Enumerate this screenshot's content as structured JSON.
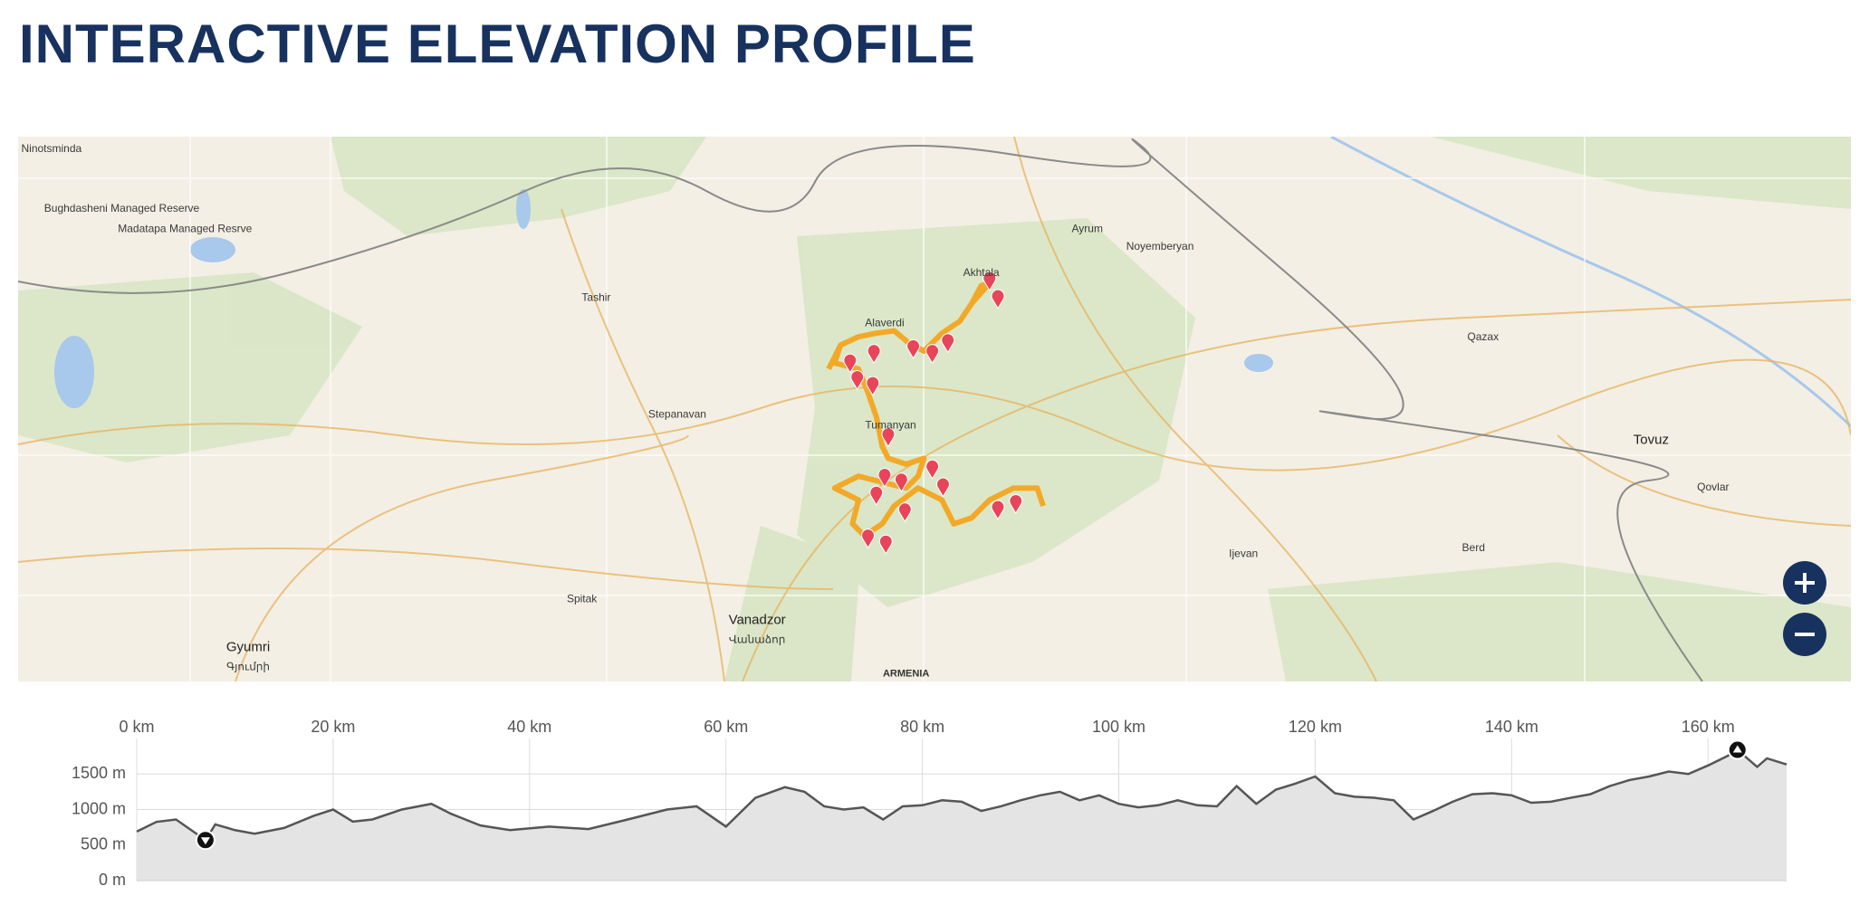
{
  "header": {
    "title": "INTERACTIVE ELEVATION PROFILE"
  },
  "map": {
    "labels": [
      "Gyumri",
      "Գյումրի",
      "Vanadzor",
      "Վանաձոր",
      "Tovuz",
      "Qazax",
      "Alaverdi",
      "Stepanavan",
      "Tashir",
      "Noyemberyan",
      "Ayrum",
      "Qovlar",
      "Ijevan",
      "Berd",
      "Spitak",
      "ARMENIA",
      "Akhtala",
      "Tumanyan",
      "Ninotsminda",
      "Bughdasheni Managed Reserve",
      "Madatapa Managed Resrve"
    ]
  },
  "chart_data": {
    "type": "area",
    "x": [
      0,
      2,
      4,
      7,
      8,
      10,
      12,
      15,
      18,
      20,
      22,
      24,
      27,
      30,
      32,
      35,
      38,
      42,
      46,
      50,
      54,
      57,
      60,
      63,
      66,
      68,
      70,
      72,
      74,
      76,
      78,
      80,
      82,
      84,
      86,
      88,
      90,
      92,
      94,
      96,
      98,
      100,
      102,
      104,
      106,
      108,
      110,
      112,
      114,
      116,
      118,
      120,
      122,
      124,
      126,
      128,
      130,
      132,
      134,
      136,
      138,
      140,
      142,
      144,
      146,
      148,
      150,
      152,
      154,
      156,
      158,
      160,
      162,
      163,
      165,
      166,
      168
    ],
    "values": [
      690,
      826,
      860,
      570,
      790,
      710,
      660,
      740,
      910,
      1000,
      830,
      860,
      1000,
      1080,
      940,
      775,
      710,
      760,
      725,
      860,
      1000,
      1045,
      760,
      1165,
      1315,
      1250,
      1045,
      1000,
      1030,
      860,
      1045,
      1060,
      1130,
      1110,
      980,
      1045,
      1130,
      1200,
      1250,
      1130,
      1200,
      1080,
      1030,
      1060,
      1130,
      1060,
      1045,
      1330,
      1080,
      1280,
      1365,
      1465,
      1230,
      1180,
      1165,
      1130,
      860,
      980,
      1110,
      1215,
      1230,
      1200,
      1095,
      1110,
      1165,
      1215,
      1330,
      1415,
      1465,
      1535,
      1500,
      1620,
      1755,
      1840,
      1600,
      1720,
      1635
    ],
    "color": "#555555",
    "fill": "#e4e4e4",
    "xlim": [
      0,
      168
    ],
    "ylim": [
      0,
      2000
    ],
    "xticks": [
      {
        "value": 0,
        "label": "0 km"
      },
      {
        "value": 20,
        "label": "20 km"
      },
      {
        "value": 40,
        "label": "40 km"
      },
      {
        "value": 60,
        "label": "60 km"
      },
      {
        "value": 80,
        "label": "80 km"
      },
      {
        "value": 100,
        "label": "100 km"
      },
      {
        "value": 120,
        "label": "120 km"
      },
      {
        "value": 140,
        "label": "140 km"
      },
      {
        "value": 160,
        "label": "160 km"
      }
    ],
    "yticks": [
      {
        "value": 0,
        "label": "0 m"
      },
      {
        "value": 500,
        "label": "500 m"
      },
      {
        "value": 1000,
        "label": "1000 m"
      },
      {
        "value": 1500,
        "label": "1500 m"
      }
    ],
    "grid": true
  }
}
